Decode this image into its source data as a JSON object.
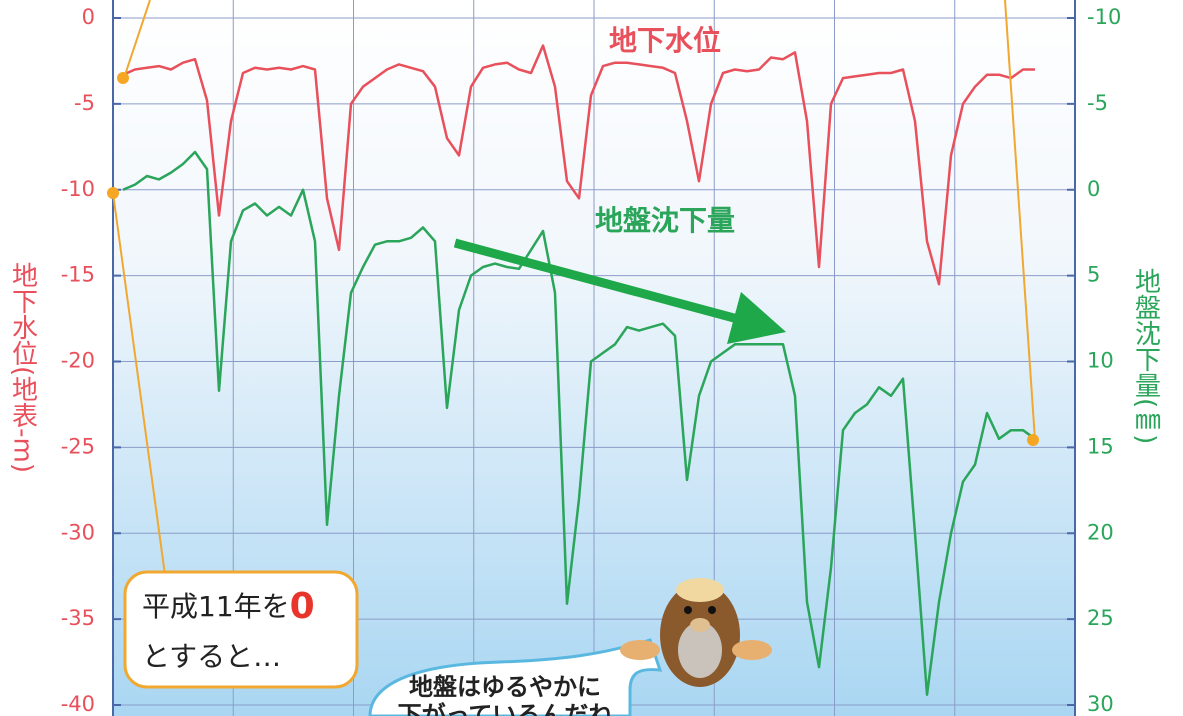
{
  "chart_data": {
    "type": "line",
    "title": "地下水位",
    "subtitle": "地盤沈下量",
    "ylabel": "地下水位(地表-m)",
    "y2label": "地盤沈下量(㎜)",
    "ylim": [
      -40,
      0
    ],
    "yticks": [
      0,
      -5,
      -10,
      -15,
      -20,
      -25,
      -30,
      -35,
      -40
    ],
    "y2lim": [
      30,
      -10
    ],
    "y2ticks": [
      -10,
      -5,
      0,
      5,
      10,
      15,
      20,
      25,
      30
    ],
    "grid": true,
    "annotations": [
      "平成11年を",
      "0",
      "とすると…",
      "地盤はゆるやかに",
      "下がっているんだね"
    ],
    "series": [
      {
        "name": "地下水位",
        "color": "#e8505b",
        "axis": "y",
        "values": [
          -3.3,
          -3.0,
          -2.9,
          -2.8,
          -3.0,
          -2.6,
          -2.4,
          -4.8,
          -11.5,
          -6.0,
          -3.2,
          -2.9,
          -3.0,
          -2.9,
          -3.0,
          -2.8,
          -3.0,
          -10.5,
          -13.5,
          -5.0,
          -4.0,
          -3.5,
          -3.0,
          -2.7,
          -2.9,
          -3.1,
          -4.0,
          -7.0,
          -8.0,
          -4.0,
          -2.9,
          -2.7,
          -2.6,
          -3.0,
          -3.2,
          -1.6,
          -4.0,
          -9.5,
          -10.5,
          -4.5,
          -2.8,
          -2.6,
          -2.6,
          -2.7,
          -2.8,
          -2.9,
          -3.2,
          -6.0,
          -9.5,
          -5.0,
          -3.2,
          -3.0,
          -3.1,
          -3.0,
          -2.3,
          -2.4,
          -2.0,
          -6.0,
          -14.5,
          -5.0,
          -3.5,
          -3.4,
          -3.3,
          -3.2,
          -3.2,
          -3.0,
          -6.0,
          -13.0,
          -15.5,
          -8.0,
          -5.0,
          -4.0,
          -3.3,
          -3.3,
          -3.5,
          -3.0,
          -3.0
        ]
      },
      {
        "name": "地盤沈下量",
        "color": "#2aa55a",
        "axis": "y2",
        "values": [
          0,
          -0.3,
          -0.8,
          -0.6,
          -1.0,
          -1.5,
          -2.2,
          -1.2,
          11.7,
          3.0,
          1.2,
          0.8,
          1.5,
          1.0,
          1.5,
          0.0,
          3.0,
          19.5,
          12.0,
          6.0,
          4.5,
          3.2,
          3.0,
          3.0,
          2.8,
          2.2,
          3.0,
          12.7,
          7.0,
          5.0,
          4.5,
          4.3,
          4.5,
          4.6,
          3.5,
          2.4,
          6.0,
          24.1,
          18.0,
          10.0,
          9.5,
          9.0,
          8.0,
          8.2,
          8.0,
          7.8,
          8.5,
          16.9,
          12.0,
          10.0,
          9.5,
          9.0,
          9.0,
          9.0,
          9.0,
          9.0,
          12.0,
          24.0,
          27.8,
          22.0,
          14.0,
          13.0,
          12.5,
          11.5,
          12.0,
          11.0,
          20.0,
          29.4,
          24.0,
          20.0,
          17.0,
          16.0,
          13.0,
          14.5,
          14.0,
          14.0,
          14.5
        ]
      }
    ]
  }
}
